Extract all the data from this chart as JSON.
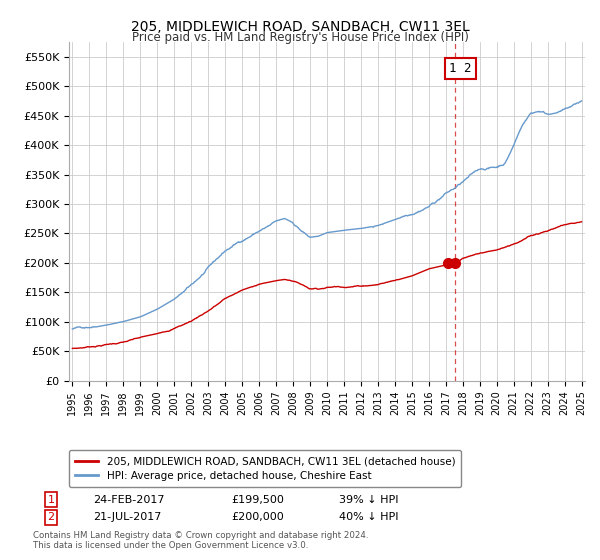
{
  "title": "205, MIDDLEWICH ROAD, SANDBACH, CW11 3EL",
  "subtitle": "Price paid vs. HM Land Registry's House Price Index (HPI)",
  "ylabel_ticks": [
    "£0",
    "£50K",
    "£100K",
    "£150K",
    "£200K",
    "£250K",
    "£300K",
    "£350K",
    "£400K",
    "£450K",
    "£500K",
    "£550K"
  ],
  "ytick_values": [
    0,
    50000,
    100000,
    150000,
    200000,
    250000,
    300000,
    350000,
    400000,
    450000,
    500000,
    550000
  ],
  "ylim": [
    0,
    575000
  ],
  "xlim_start": 1994.8,
  "xlim_end": 2025.2,
  "red_line_color": "#cc0000",
  "blue_line_color": "#6699cc",
  "vline_color": "#cc0000",
  "vline_x": 2017.55,
  "marker1_x": 2017.15,
  "marker1_y": 199500,
  "marker2_x": 2017.55,
  "marker2_y": 200000,
  "legend_label_red": "205, MIDDLEWICH ROAD, SANDBACH, CW11 3EL (detached house)",
  "legend_label_blue": "HPI: Average price, detached house, Cheshire East",
  "transaction1_label": "1",
  "transaction1_date": "24-FEB-2017",
  "transaction1_price": "£199,500",
  "transaction1_hpi": "39% ↓ HPI",
  "transaction2_label": "2",
  "transaction2_date": "21-JUL-2017",
  "transaction2_price": "£200,000",
  "transaction2_hpi": "40% ↓ HPI",
  "footnote": "Contains HM Land Registry data © Crown copyright and database right 2024.\nThis data is licensed under the Open Government Licence v3.0.",
  "bg_color": "#ffffff",
  "grid_color": "#cccccc",
  "annotation_box_color": "#cc0000",
  "hpi_knots_x": [
    1995,
    1995.5,
    1996,
    1997,
    1998,
    1999,
    2000,
    2001,
    2002,
    2003,
    2004,
    2005,
    2006,
    2007,
    2007.5,
    2008,
    2008.5,
    2009,
    2009.5,
    2010,
    2011,
    2012,
    2013,
    2014,
    2015,
    2016,
    2016.5,
    2017,
    2017.5,
    2018,
    2018.5,
    2019,
    2020,
    2020.5,
    2021,
    2021.5,
    2022,
    2022.5,
    2023,
    2023.5,
    2024,
    2024.5,
    2025
  ],
  "hpi_knots_y": [
    88000,
    90000,
    93000,
    98000,
    104000,
    112000,
    125000,
    142000,
    165000,
    192000,
    220000,
    238000,
    255000,
    268000,
    272000,
    265000,
    252000,
    240000,
    242000,
    248000,
    252000,
    255000,
    260000,
    270000,
    283000,
    298000,
    308000,
    320000,
    328000,
    338000,
    348000,
    358000,
    362000,
    370000,
    400000,
    435000,
    455000,
    460000,
    455000,
    458000,
    462000,
    468000,
    475000
  ],
  "red_knots_x": [
    1995,
    1995.5,
    1996,
    1997,
    1998,
    1999,
    2000,
    2001,
    2002,
    2003,
    2004,
    2005,
    2006,
    2007,
    2007.5,
    2008,
    2008.5,
    2009,
    2009.5,
    2010,
    2011,
    2012,
    2013,
    2014,
    2015,
    2016,
    2017.15,
    2017.55,
    2018,
    2019,
    2020,
    2021,
    2022,
    2023,
    2024,
    2025
  ],
  "red_knots_y": [
    55000,
    56000,
    58000,
    62000,
    66000,
    72000,
    78000,
    88000,
    100000,
    118000,
    138000,
    152000,
    162000,
    168000,
    170000,
    168000,
    162000,
    155000,
    156000,
    158000,
    160000,
    162000,
    165000,
    172000,
    180000,
    192000,
    199500,
    200000,
    207000,
    215000,
    220000,
    232000,
    245000,
    255000,
    265000,
    270000
  ],
  "noise_seed_hpi": 42,
  "noise_seed_red": 7,
  "noise_amp_hpi": 3500,
  "noise_amp_red": 2000,
  "n_points": 800
}
